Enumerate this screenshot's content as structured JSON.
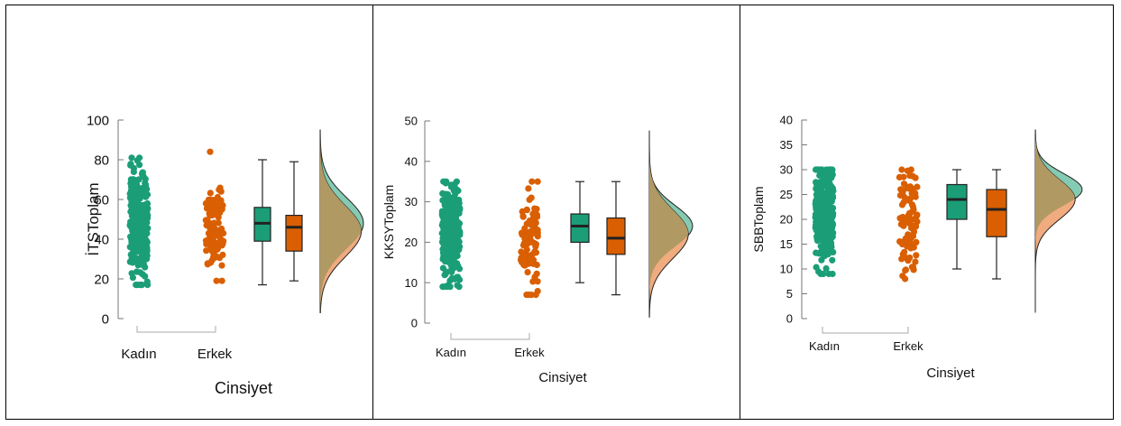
{
  "colors": {
    "kadin": "#1b9e77",
    "erkek": "#d95f02",
    "kadin_density": "#85cbb3",
    "erkek_density": "#f0ab7f",
    "overlap_density": "#b19963",
    "axis": "#777777",
    "box_line": "#222222"
  },
  "chart_data": [
    {
      "type": "raincloud",
      "ylabel": "İTSToplam",
      "xlabel": "Cinsiyet",
      "categories": [
        "Kadın",
        "Erkek"
      ],
      "y_ticks": [
        "0",
        "20",
        "40",
        "60",
        "80",
        "100"
      ],
      "ylim": [
        0,
        100
      ],
      "points": {
        "Kadın": {
          "n": 300,
          "min": 17,
          "max": 81,
          "mean": 48,
          "sd": 14
        },
        "Erkek": {
          "n": 90,
          "min": 19,
          "max": 84,
          "mean": 44,
          "sd": 13
        }
      },
      "box": {
        "Kadın": {
          "min": 17,
          "q1": 39,
          "median": 48,
          "q3": 56,
          "max": 80
        },
        "Erkek": {
          "min": 19,
          "q1": 34,
          "median": 46,
          "q3": 52,
          "max": 79
        }
      },
      "density": {
        "Kadın": {
          "peak": 48,
          "spread": 13,
          "height": 1.0
        },
        "Erkek": {
          "peak": 44,
          "spread": 13,
          "height": 0.95
        }
      }
    },
    {
      "type": "raincloud",
      "ylabel": "KKSYToplam",
      "xlabel": "Cinsiyet",
      "categories": [
        "Kadın",
        "Erkek"
      ],
      "y_ticks": [
        "0",
        "10",
        "20",
        "30",
        "40",
        "50"
      ],
      "ylim": [
        0,
        50
      ],
      "points": {
        "Kadın": {
          "n": 300,
          "min": 9,
          "max": 35,
          "mean": 23,
          "sd": 6
        },
        "Erkek": {
          "n": 90,
          "min": 7,
          "max": 35,
          "mean": 21,
          "sd": 6
        }
      },
      "box": {
        "Kadın": {
          "min": 10,
          "q1": 20,
          "median": 24,
          "q3": 27,
          "max": 35
        },
        "Erkek": {
          "min": 7,
          "q1": 17,
          "median": 21,
          "q3": 26,
          "max": 35
        }
      },
      "density": {
        "Kadın": {
          "peak": 24,
          "spread": 5,
          "height": 1.0
        },
        "Erkek": {
          "peak": 22,
          "spread": 6,
          "height": 0.9
        }
      }
    },
    {
      "type": "raincloud",
      "ylabel": "SBBToplam",
      "xlabel": "Cinsiyet",
      "categories": [
        "Kadın",
        "Erkek"
      ],
      "y_ticks": [
        "0",
        "5",
        "10",
        "15",
        "20",
        "25",
        "30",
        "35",
        "40"
      ],
      "ylim": [
        0,
        40
      ],
      "points": {
        "Kadın": {
          "n": 300,
          "min": 9,
          "max": 30,
          "mean": 22,
          "sd": 5
        },
        "Erkek": {
          "n": 90,
          "min": 8,
          "max": 30,
          "mean": 21,
          "sd": 6
        }
      },
      "box": {
        "Kadın": {
          "min": 10,
          "q1": 20,
          "median": 24,
          "q3": 27,
          "max": 30
        },
        "Erkek": {
          "min": 8,
          "q1": 16.5,
          "median": 22,
          "q3": 26,
          "max": 30
        }
      },
      "density": {
        "Kadın": {
          "peak": 26,
          "spread": 3.2,
          "height": 1.0
        },
        "Erkek": {
          "peak": 24,
          "spread": 4,
          "height": 0.85
        }
      }
    }
  ]
}
